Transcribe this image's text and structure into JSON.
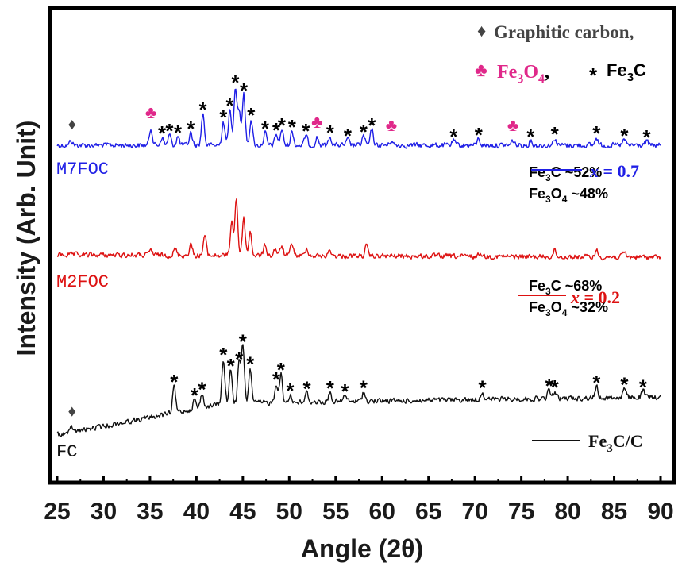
{
  "chart_data": {
    "type": "line",
    "xlabel": "Angle (2θ)",
    "ylabel": "Intensity (Arb. Unit)",
    "xlim": [
      25,
      90
    ],
    "xticks": [
      "25",
      "30",
      "35",
      "40",
      "45",
      "50",
      "55",
      "60",
      "65",
      "70",
      "75",
      "80",
      "85",
      "90"
    ],
    "grid": false,
    "legend": {
      "graphitic": "Graphitic carbon,",
      "fe3o4": "Fe3O4,",
      "fe3c": "Fe3C",
      "diamond": "♦",
      "club": "♣",
      "asterisk": "*"
    },
    "series": [
      {
        "name": "M7FOC",
        "color": "#1f1fe6",
        "legend_label": "x = 0.7",
        "comp_line1": "Fe3C ~52%",
        "comp_line2": "Fe3O4 ~48%",
        "peaks": [
          [
            26.5,
            6
          ],
          [
            35.1,
            22
          ],
          [
            36.3,
            10
          ],
          [
            37.1,
            13
          ],
          [
            38.0,
            11
          ],
          [
            39.4,
            16
          ],
          [
            40.7,
            40
          ],
          [
            42.9,
            30
          ],
          [
            43.6,
            45
          ],
          [
            44.2,
            74
          ],
          [
            44.6,
            44
          ],
          [
            45.1,
            64
          ],
          [
            45.9,
            33
          ],
          [
            47.4,
            16
          ],
          [
            48.6,
            14
          ],
          [
            49.2,
            20
          ],
          [
            50.3,
            18
          ],
          [
            51.8,
            13
          ],
          [
            53.0,
            10
          ],
          [
            54.4,
            11
          ],
          [
            56.3,
            7
          ],
          [
            58.0,
            12
          ],
          [
            58.9,
            20
          ],
          [
            61.0,
            6
          ],
          [
            67.7,
            6
          ],
          [
            70.4,
            8
          ],
          [
            74.1,
            6
          ],
          [
            76.0,
            6
          ],
          [
            78.6,
            9
          ],
          [
            83.1,
            10
          ],
          [
            86.1,
            7
          ],
          [
            88.5,
            5
          ]
        ]
      },
      {
        "name": "M2FOC",
        "color": "#dd1111",
        "legend_label": "x = 0.2",
        "comp_line1": "Fe3C ~68%",
        "comp_line2": "Fe3O4 ~32%",
        "peaks": [
          [
            35.1,
            7
          ],
          [
            37.7,
            8
          ],
          [
            39.4,
            14
          ],
          [
            40.9,
            25
          ],
          [
            43.8,
            42
          ],
          [
            44.3,
            72
          ],
          [
            45.1,
            47
          ],
          [
            45.8,
            30
          ],
          [
            47.4,
            14
          ],
          [
            48.5,
            9
          ],
          [
            49.2,
            12
          ],
          [
            50.3,
            16
          ],
          [
            51.9,
            10
          ],
          [
            54.4,
            7
          ],
          [
            58.3,
            12
          ],
          [
            70.6,
            5
          ],
          [
            78.6,
            8
          ],
          [
            83.1,
            8
          ],
          [
            86.1,
            6
          ]
        ]
      },
      {
        "name": "FC",
        "color": "#111111",
        "legend_label": "Fe3C/C",
        "peaks": [
          [
            26.6,
            6
          ],
          [
            37.6,
            34
          ],
          [
            39.8,
            12
          ],
          [
            40.6,
            18
          ],
          [
            42.9,
            56
          ],
          [
            43.7,
            42
          ],
          [
            44.6,
            50
          ],
          [
            45.0,
            72
          ],
          [
            45.8,
            44
          ],
          [
            48.6,
            24
          ],
          [
            49.1,
            36
          ],
          [
            50.1,
            10
          ],
          [
            51.9,
            12
          ],
          [
            54.4,
            12
          ],
          [
            56.0,
            8
          ],
          [
            58.0,
            12
          ],
          [
            70.8,
            10
          ],
          [
            78.0,
            11
          ],
          [
            78.6,
            9
          ],
          [
            83.1,
            14
          ],
          [
            86.1,
            11
          ],
          [
            88.1,
            8
          ]
        ]
      }
    ],
    "markers": {
      "M7FOC": {
        "graphitic": [
          26.6
        ],
        "fe3o4": [
          35.1,
          53.0,
          61.0,
          74.1
        ],
        "fe3c": [
          36.3,
          37.1,
          38.0,
          39.4,
          40.7,
          42.9,
          43.6,
          44.2,
          45.1,
          45.9,
          47.4,
          48.6,
          49.2,
          50.3,
          51.8,
          54.4,
          56.3,
          58.0,
          58.9,
          67.7,
          70.4,
          76.0,
          78.6,
          83.1,
          86.1,
          88.5
        ]
      },
      "FC": {
        "graphitic": [
          26.6
        ],
        "fe3c": [
          37.6,
          39.8,
          40.6,
          42.9,
          43.7,
          44.6,
          45.0,
          45.8,
          48.6,
          49.1,
          50.1,
          51.9,
          54.4,
          56.0,
          58.0,
          70.8,
          78.0,
          78.6,
          83.1,
          86.1,
          88.1
        ]
      }
    }
  }
}
